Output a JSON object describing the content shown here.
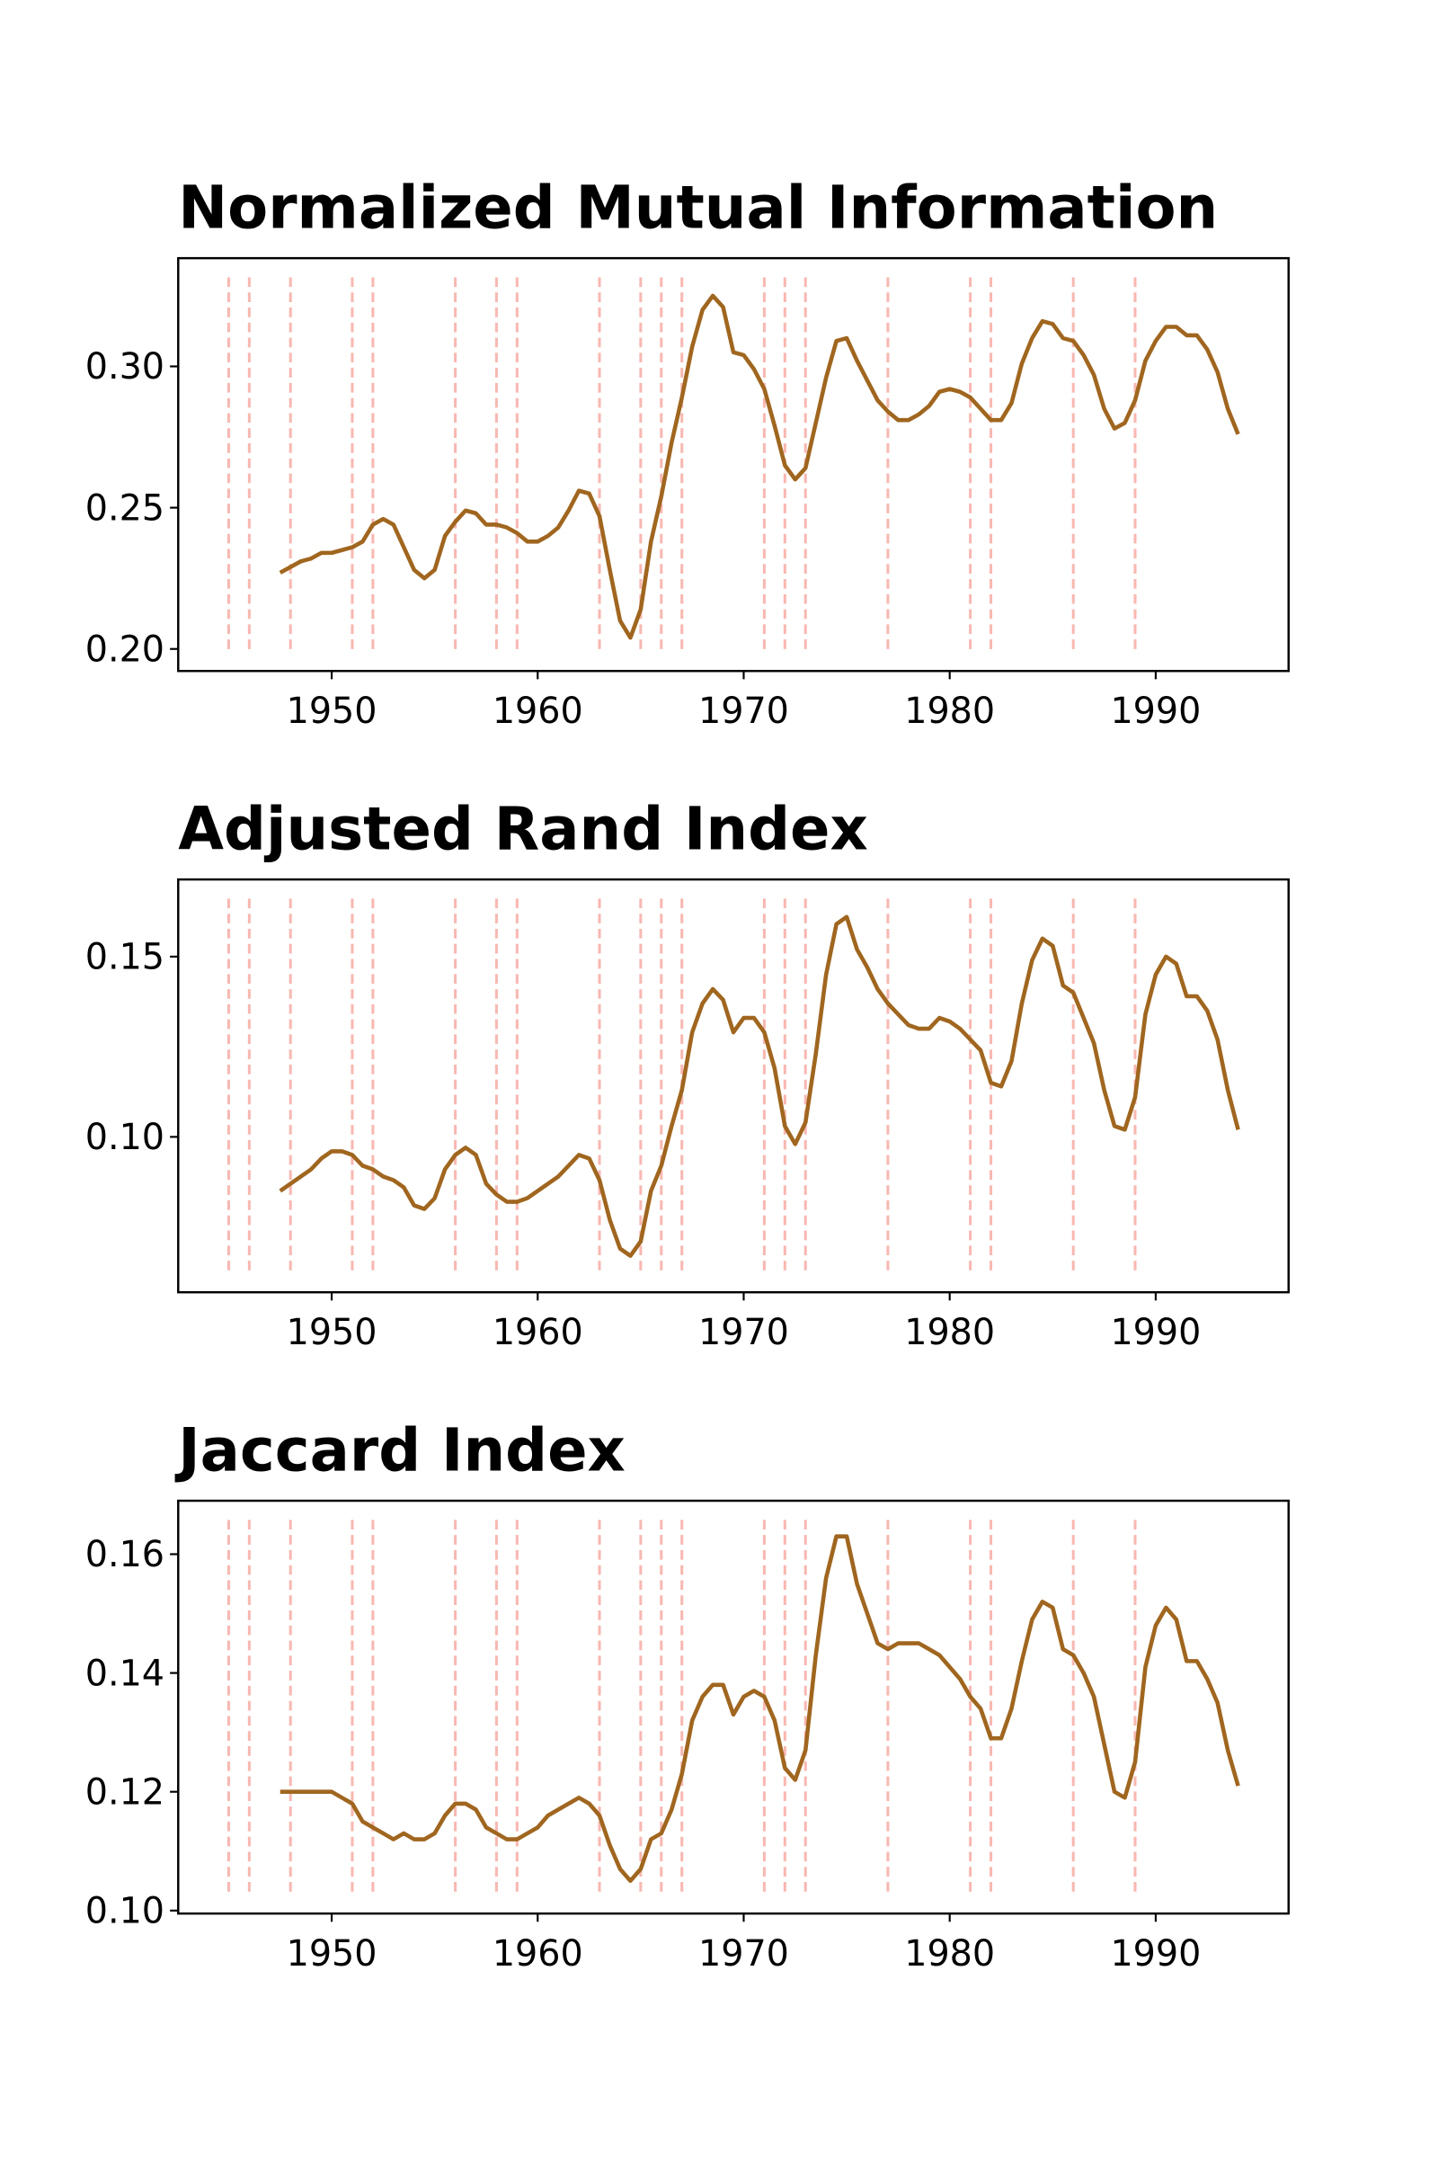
{
  "chart_data": [
    {
      "type": "line",
      "title": "Normalized Mutual Information",
      "x": [
        1947.5,
        1948,
        1948.5,
        1949,
        1949.5,
        1950,
        1950.5,
        1951,
        1951.5,
        1952,
        1952.5,
        1953,
        1953.5,
        1954,
        1954.5,
        1955,
        1955.5,
        1956,
        1956.5,
        1957,
        1957.5,
        1958,
        1958.5,
        1959,
        1959.5,
        1960,
        1960.5,
        1961,
        1961.5,
        1962,
        1962.5,
        1963,
        1963.5,
        1964,
        1964.5,
        1965,
        1965.5,
        1966,
        1966.5,
        1967,
        1967.5,
        1968,
        1968.5,
        1969,
        1969.5,
        1970,
        1970.5,
        1971,
        1971.5,
        1972,
        1972.5,
        1973,
        1973.5,
        1974,
        1974.5,
        1975,
        1975.5,
        1976,
        1976.5,
        1977,
        1977.5,
        1978,
        1978.5,
        1979,
        1979.5,
        1980,
        1980.5,
        1981,
        1981.5,
        1982,
        1982.5,
        1983,
        1983.5,
        1984,
        1984.5,
        1985,
        1985.5,
        1986,
        1986.5,
        1987,
        1987.5,
        1988,
        1988.5,
        1989,
        1989.5,
        1990,
        1990.5,
        1991,
        1991.5,
        1992,
        1992.5,
        1993,
        1993.5,
        1994
      ],
      "series": [
        {
          "color": "#a0661f",
          "values": [
            0.227,
            0.229,
            0.231,
            0.232,
            0.234,
            0.234,
            0.235,
            0.236,
            0.238,
            0.244,
            0.246,
            0.244,
            0.236,
            0.228,
            0.225,
            0.228,
            0.24,
            0.245,
            0.249,
            0.248,
            0.244,
            0.244,
            0.243,
            0.241,
            0.238,
            0.238,
            0.24,
            0.243,
            0.249,
            0.256,
            0.255,
            0.247,
            0.228,
            0.21,
            0.204,
            0.214,
            0.238,
            0.254,
            0.273,
            0.289,
            0.307,
            0.32,
            0.325,
            0.321,
            0.305,
            0.304,
            0.299,
            0.292,
            0.279,
            0.265,
            0.26,
            0.264,
            0.28,
            0.296,
            0.309,
            0.31,
            0.302,
            0.295,
            0.288,
            0.284,
            0.281,
            0.281,
            0.283,
            0.286,
            0.291,
            0.292,
            0.291,
            0.289,
            0.285,
            0.281,
            0.281,
            0.287,
            0.301,
            0.31,
            0.316,
            0.315,
            0.31,
            0.309,
            0.304,
            0.297,
            0.285,
            0.278,
            0.28,
            0.288,
            0.302,
            0.309,
            0.314,
            0.314,
            0.311,
            0.311,
            0.306,
            0.298,
            0.285,
            0.276
          ]
        }
      ],
      "vlines": [
        1945,
        1946,
        1948,
        1951,
        1952,
        1956,
        1958,
        1959,
        1963,
        1965,
        1966,
        1967,
        1971,
        1972,
        1973,
        1977,
        1981,
        1982,
        1986,
        1989
      ],
      "vline_color": "#f8b8b2",
      "xlim": [
        1942.55,
        1996.45
      ],
      "xticks": [
        1950,
        1960,
        1970,
        1980,
        1990
      ],
      "ylim": [
        0.1922,
        0.3383
      ],
      "yticks": [
        {
          "value": 0.2,
          "label": "0.20"
        },
        0.25,
        {
          "value": 0.3,
          "label": "0.30"
        }
      ]
    },
    {
      "type": "line",
      "title": "Adjusted Rand Index",
      "x": [
        1947.5,
        1948,
        1948.5,
        1949,
        1949.5,
        1950,
        1950.5,
        1951,
        1951.5,
        1952,
        1952.5,
        1953,
        1953.5,
        1954,
        1954.5,
        1955,
        1955.5,
        1956,
        1956.5,
        1957,
        1957.5,
        1958,
        1958.5,
        1959,
        1959.5,
        1960,
        1960.5,
        1961,
        1961.5,
        1962,
        1962.5,
        1963,
        1963.5,
        1964,
        1964.5,
        1965,
        1965.5,
        1966,
        1966.5,
        1967,
        1967.5,
        1968,
        1968.5,
        1969,
        1969.5,
        1970,
        1970.5,
        1971,
        1971.5,
        1972,
        1972.5,
        1973,
        1973.5,
        1974,
        1974.5,
        1975,
        1975.5,
        1976,
        1976.5,
        1977,
        1977.5,
        1978,
        1978.5,
        1979,
        1979.5,
        1980,
        1980.5,
        1981,
        1981.5,
        1982,
        1982.5,
        1983,
        1983.5,
        1984,
        1984.5,
        1985,
        1985.5,
        1986,
        1986.5,
        1987,
        1987.5,
        1988,
        1988.5,
        1989,
        1989.5,
        1990,
        1990.5,
        1991,
        1991.5,
        1992,
        1992.5,
        1993,
        1993.5,
        1994
      ],
      "series": [
        {
          "color": "#a0661f",
          "values": [
            0.085,
            0.087,
            0.089,
            0.091,
            0.094,
            0.096,
            0.096,
            0.095,
            0.092,
            0.091,
            0.089,
            0.088,
            0.086,
            0.081,
            0.08,
            0.083,
            0.091,
            0.095,
            0.097,
            0.095,
            0.087,
            0.084,
            0.082,
            0.082,
            0.083,
            0.085,
            0.087,
            0.089,
            0.092,
            0.095,
            0.094,
            0.088,
            0.077,
            0.069,
            0.067,
            0.071,
            0.085,
            0.092,
            0.103,
            0.113,
            0.129,
            0.137,
            0.141,
            0.138,
            0.129,
            0.133,
            0.133,
            0.129,
            0.119,
            0.103,
            0.098,
            0.104,
            0.123,
            0.145,
            0.159,
            0.161,
            0.152,
            0.147,
            0.141,
            0.137,
            0.134,
            0.131,
            0.13,
            0.13,
            0.133,
            0.132,
            0.13,
            0.127,
            0.124,
            0.115,
            0.114,
            0.121,
            0.137,
            0.149,
            0.155,
            0.153,
            0.142,
            0.14,
            0.133,
            0.126,
            0.113,
            0.103,
            0.102,
            0.111,
            0.134,
            0.145,
            0.15,
            0.148,
            0.139,
            0.139,
            0.135,
            0.127,
            0.113,
            0.102
          ]
        }
      ],
      "vlines": [
        1945,
        1946,
        1948,
        1951,
        1952,
        1956,
        1958,
        1959,
        1963,
        1965,
        1966,
        1967,
        1971,
        1972,
        1973,
        1977,
        1981,
        1982,
        1986,
        1989
      ],
      "vline_color": "#f8b8b2",
      "xlim": [
        1942.55,
        1996.45
      ],
      "xticks": [
        1950,
        1960,
        1970,
        1980,
        1990
      ],
      "ylim": [
        0.0569,
        0.1714
      ],
      "yticks": [
        {
          "value": 0.1,
          "label": "0.10"
        },
        0.15
      ]
    },
    {
      "type": "line",
      "title": "Jaccard Index",
      "x": [
        1947.5,
        1948,
        1948.5,
        1949,
        1949.5,
        1950,
        1950.5,
        1951,
        1951.5,
        1952,
        1952.5,
        1953,
        1953.5,
        1954,
        1954.5,
        1955,
        1955.5,
        1956,
        1956.5,
        1957,
        1957.5,
        1958,
        1958.5,
        1959,
        1959.5,
        1960,
        1960.5,
        1961,
        1961.5,
        1962,
        1962.5,
        1963,
        1963.5,
        1964,
        1964.5,
        1965,
        1965.5,
        1966,
        1966.5,
        1967,
        1967.5,
        1968,
        1968.5,
        1969,
        1969.5,
        1970,
        1970.5,
        1971,
        1971.5,
        1972,
        1972.5,
        1973,
        1973.5,
        1974,
        1974.5,
        1975,
        1975.5,
        1976,
        1976.5,
        1977,
        1977.5,
        1978,
        1978.5,
        1979,
        1979.5,
        1980,
        1980.5,
        1981,
        1981.5,
        1982,
        1982.5,
        1983,
        1983.5,
        1984,
        1984.5,
        1985,
        1985.5,
        1986,
        1986.5,
        1987,
        1987.5,
        1988,
        1988.5,
        1989,
        1989.5,
        1990,
        1990.5,
        1991,
        1991.5,
        1992,
        1992.5,
        1993,
        1993.5,
        1994
      ],
      "series": [
        {
          "color": "#a0661f",
          "values": [
            0.12,
            0.12,
            0.12,
            0.12,
            0.12,
            0.12,
            0.119,
            0.118,
            0.115,
            0.114,
            0.113,
            0.112,
            0.113,
            0.112,
            0.112,
            0.113,
            0.116,
            0.118,
            0.118,
            0.117,
            0.114,
            0.113,
            0.112,
            0.112,
            0.113,
            0.114,
            0.116,
            0.117,
            0.118,
            0.119,
            0.118,
            0.116,
            0.111,
            0.107,
            0.105,
            0.107,
            0.112,
            0.113,
            0.117,
            0.123,
            0.132,
            0.136,
            0.138,
            0.138,
            0.133,
            0.136,
            0.137,
            0.136,
            0.132,
            0.124,
            0.122,
            0.127,
            0.143,
            0.156,
            0.163,
            0.163,
            0.155,
            0.15,
            0.145,
            0.144,
            0.145,
            0.145,
            0.145,
            0.144,
            0.143,
            0.141,
            0.139,
            0.136,
            0.134,
            0.129,
            0.129,
            0.134,
            0.142,
            0.149,
            0.152,
            0.151,
            0.144,
            0.143,
            0.14,
            0.136,
            0.128,
            0.12,
            0.119,
            0.125,
            0.141,
            0.148,
            0.151,
            0.149,
            0.142,
            0.142,
            0.139,
            0.135,
            0.127,
            0.121
          ]
        }
      ],
      "vlines": [
        1945,
        1946,
        1948,
        1951,
        1952,
        1956,
        1958,
        1959,
        1963,
        1965,
        1966,
        1967,
        1971,
        1972,
        1973,
        1977,
        1981,
        1982,
        1986,
        1989
      ],
      "vline_color": "#f8b8b2",
      "xlim": [
        1942.55,
        1996.45
      ],
      "xticks": [
        1950,
        1960,
        1970,
        1980,
        1990
      ],
      "ylim": [
        0.0995,
        0.169
      ],
      "yticks": [
        {
          "value": 0.1,
          "label": "0.10"
        },
        0.12,
        0.14,
        0.16
      ]
    }
  ]
}
